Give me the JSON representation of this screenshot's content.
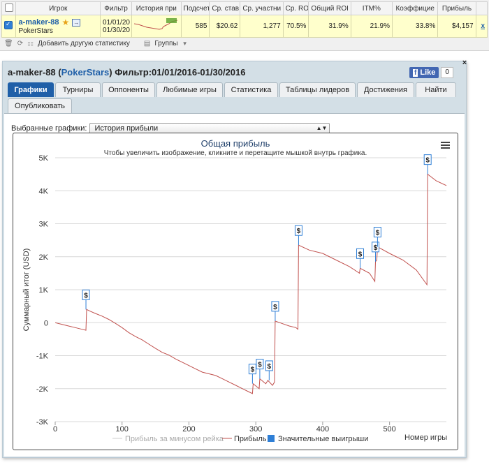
{
  "stats_table": {
    "headers": [
      "",
      "Игрок",
      "Фильтр",
      "История при",
      "Подсчет",
      "Ср. став",
      "Ср. участни",
      "Ср. ROI",
      "Общий ROI",
      "ITM%",
      "Коэффицие",
      "Прибыль",
      ""
    ],
    "row": {
      "player": "a-maker-88",
      "site": "PokerStars",
      "filter_from": "01/01/20",
      "filter_to": "01/30/20",
      "count": "585",
      "avg_stake": "$20.62",
      "avg_entrants": "1,277",
      "avg_roi": "70.5%",
      "total_roi": "31.9%",
      "itm": "21.9%",
      "coefficient": "33.8%",
      "profit": "$4,157",
      "remove": "x"
    },
    "toolbar": {
      "add_stat": "Добавить другую статистику",
      "groups": "Группы"
    }
  },
  "panel": {
    "title_prefix": "a-maker-88 (",
    "title_site": "PokerStars",
    "title_suffix": ") Фильтр:01/01/2016-01/30/2016",
    "close": "×",
    "like_label": "Like",
    "like_count": "0",
    "tabs": [
      "Графики",
      "Турниры",
      "Оппоненты",
      "Любимые игры",
      "Статистика",
      "Таблицы лидеров",
      "Достижения",
      "Найти",
      "Опубликовать"
    ],
    "graph_select_label": "Выбранные графики:",
    "graph_select_value": "История прибыли"
  },
  "chart_data": {
    "type": "line",
    "title": "Общая прибыль",
    "subtitle": "Чтобы увеличить изображение, кликните и перетащите мышкой внутрь графика.",
    "xlabel": "Номер игры",
    "ylabel": "Суммарный итог (USD)",
    "xlim": [
      0,
      585
    ],
    "ylim": [
      -3000,
      5000
    ],
    "x_ticks": [
      0,
      100,
      200,
      300,
      400,
      500
    ],
    "y_ticks": [
      -3000,
      -2000,
      -1000,
      0,
      1000,
      2000,
      3000,
      4000,
      5000
    ],
    "y_tick_labels": [
      "-3K",
      "-2K",
      "-1K",
      "0",
      "1K",
      "2K",
      "3K",
      "4K",
      "5K"
    ],
    "grid": true,
    "legend_position": "bottom",
    "legend": [
      "Прибыль за минусом рейка",
      "Прибыль",
      "Значительные выигрыши"
    ],
    "series": [
      {
        "name": "Прибыль",
        "color": "#c0504d",
        "points": [
          [
            0,
            0
          ],
          [
            10,
            -50
          ],
          [
            20,
            -100
          ],
          [
            30,
            -150
          ],
          [
            40,
            -200
          ],
          [
            46,
            -230
          ],
          [
            47,
            400
          ],
          [
            52,
            350
          ],
          [
            60,
            280
          ],
          [
            70,
            200
          ],
          [
            80,
            100
          ],
          [
            90,
            -20
          ],
          [
            100,
            -150
          ],
          [
            110,
            -300
          ],
          [
            120,
            -420
          ],
          [
            130,
            -520
          ],
          [
            140,
            -650
          ],
          [
            150,
            -780
          ],
          [
            160,
            -900
          ],
          [
            170,
            -980
          ],
          [
            180,
            -1100
          ],
          [
            190,
            -1200
          ],
          [
            200,
            -1300
          ],
          [
            210,
            -1400
          ],
          [
            220,
            -1500
          ],
          [
            230,
            -1550
          ],
          [
            240,
            -1600
          ],
          [
            250,
            -1700
          ],
          [
            260,
            -1800
          ],
          [
            270,
            -1900
          ],
          [
            280,
            -2000
          ],
          [
            290,
            -2100
          ],
          [
            295,
            -2150
          ],
          [
            296,
            -1850
          ],
          [
            305,
            -2000
          ],
          [
            306,
            -1700
          ],
          [
            315,
            -1850
          ],
          [
            318,
            -1750
          ],
          [
            325,
            -1900
          ],
          [
            328,
            -1800
          ],
          [
            329,
            50
          ],
          [
            340,
            -30
          ],
          [
            350,
            -100
          ],
          [
            360,
            -150
          ],
          [
            363,
            -200
          ],
          [
            364,
            2350
          ],
          [
            380,
            2200
          ],
          [
            400,
            2100
          ],
          [
            420,
            1900
          ],
          [
            440,
            1700
          ],
          [
            455,
            1500
          ],
          [
            456,
            1650
          ],
          [
            470,
            1500
          ],
          [
            478,
            1250
          ],
          [
            479,
            1850
          ],
          [
            481,
            1900
          ],
          [
            482,
            2300
          ],
          [
            500,
            2100
          ],
          [
            520,
            1900
          ],
          [
            540,
            1600
          ],
          [
            556,
            1150
          ],
          [
            557,
            4500
          ],
          [
            570,
            4300
          ],
          [
            585,
            4157
          ]
        ]
      }
    ],
    "markers": [
      {
        "x": 46,
        "y": 400,
        "label": "$"
      },
      {
        "x": 295,
        "y": -1850,
        "label": "$"
      },
      {
        "x": 306,
        "y": -1700,
        "label": "$"
      },
      {
        "x": 320,
        "y": -1750,
        "label": "$"
      },
      {
        "x": 329,
        "y": 50,
        "label": "$"
      },
      {
        "x": 364,
        "y": 2350,
        "label": "$"
      },
      {
        "x": 456,
        "y": 1650,
        "label": "$"
      },
      {
        "x": 479,
        "y": 1850,
        "label": "$"
      },
      {
        "x": 482,
        "y": 2300,
        "label": "$"
      },
      {
        "x": 557,
        "y": 4500,
        "label": "$"
      }
    ],
    "colors": {
      "profit": "#c0504d",
      "rake": "#cccccc",
      "big_wins": "#2f7fd6",
      "title": "#1f3f6a"
    }
  }
}
